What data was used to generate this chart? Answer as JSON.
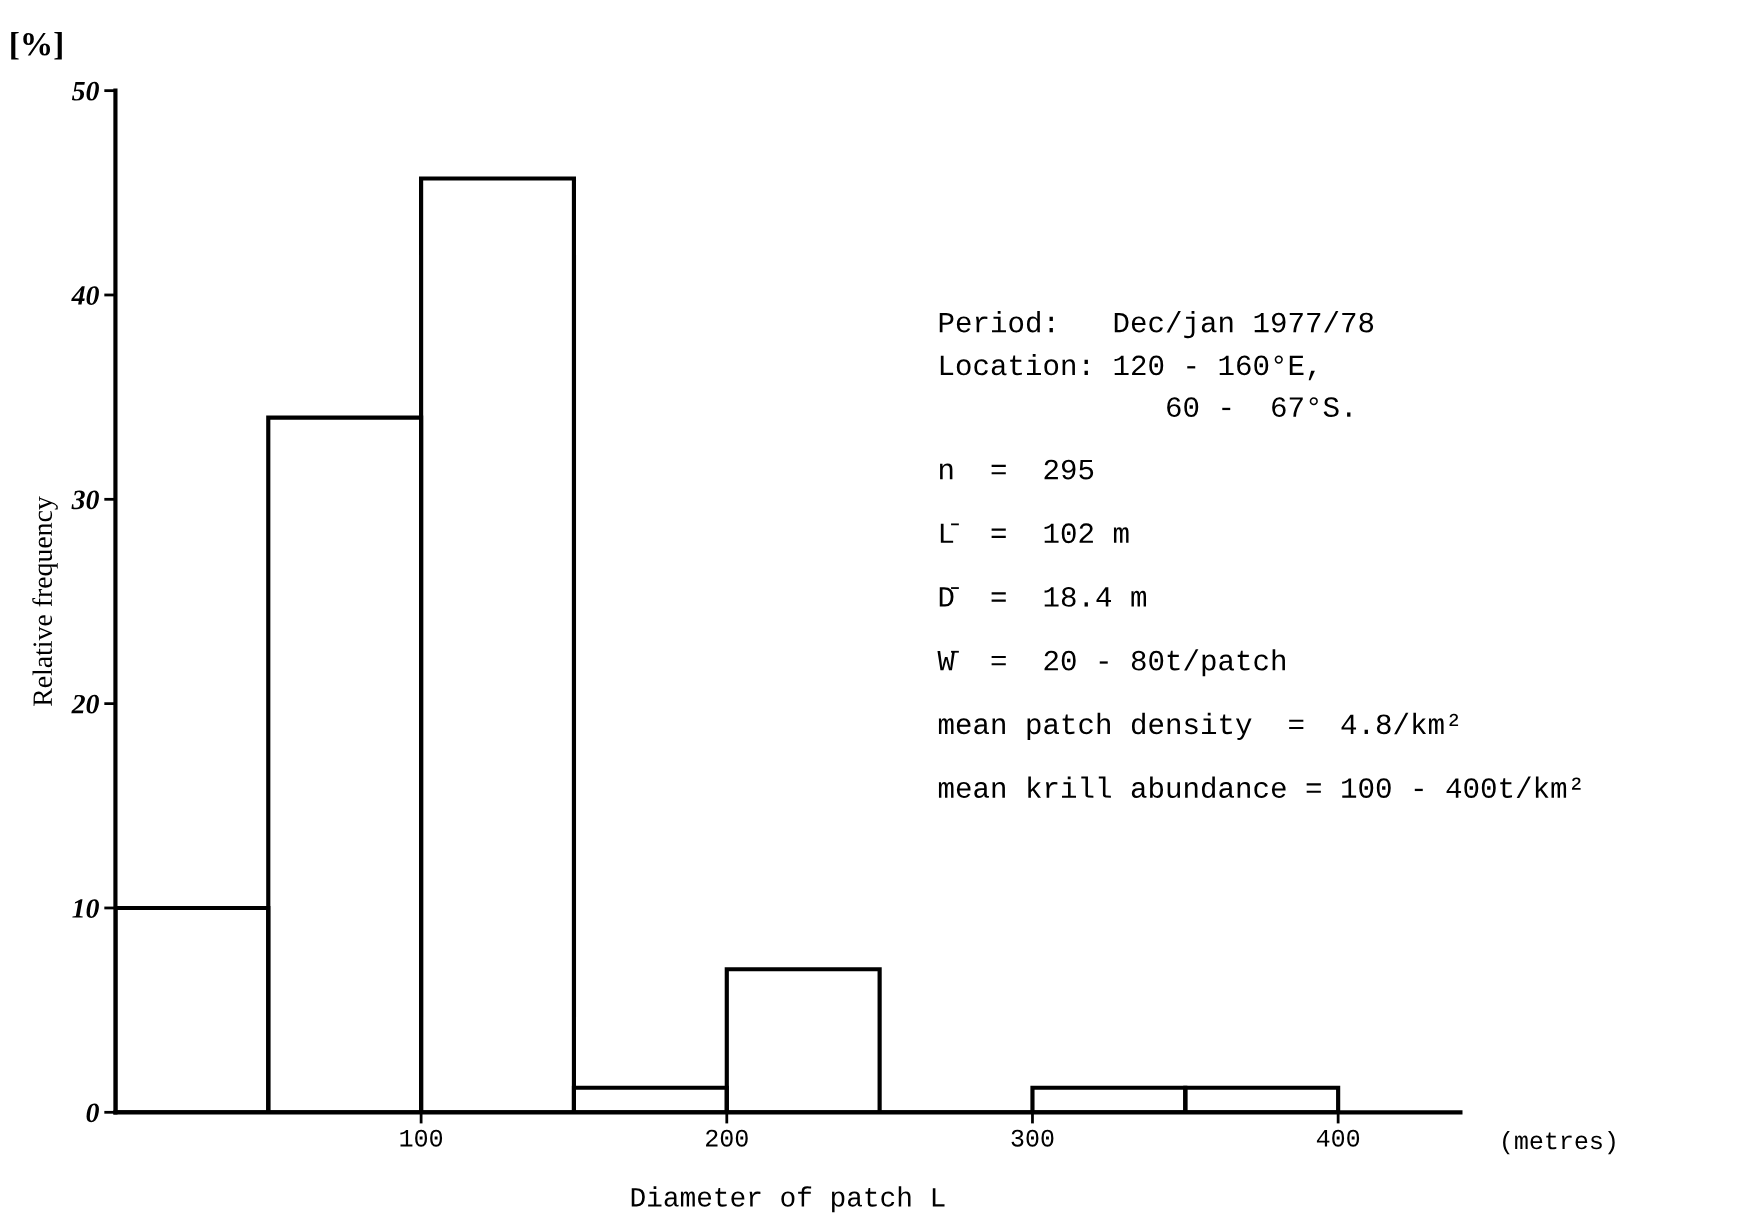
{
  "chart_data": {
    "type": "histogram",
    "bins": [
      0,
      50,
      100,
      150,
      200,
      250,
      300,
      350,
      400
    ],
    "values": [
      10,
      34,
      45.7,
      1.2,
      7,
      0,
      1.2,
      1.2
    ],
    "color": "#000000",
    "xlabel": "Diameter of patch L",
    "ylabel": "Relative frequency",
    "xlim": [
      0,
      440
    ],
    "xticks": [
      100,
      200,
      300,
      400
    ],
    "ylim": [
      0,
      50
    ],
    "yticks": [
      0,
      10,
      20,
      30,
      40,
      50
    ],
    "grid": false,
    "annotations": [
      "[%]",
      "(metres)",
      "Period:   Dec/jan 1977/78",
      "Location: 120 - 160°E,",
      "             60 -  67°S.",
      "n  =  295",
      "L̄  =  102 m",
      "D̄  =  18.4 m",
      "W̄  =  20 - 80t/patch",
      "mean patch density  =  4.8/km²",
      "mean krill abundance = 100 - 400t/km²"
    ]
  }
}
